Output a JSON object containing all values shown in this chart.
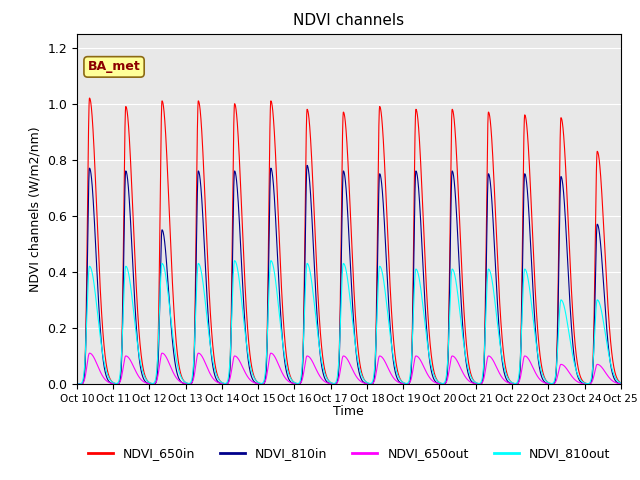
{
  "title": "NDVI channels",
  "ylabel": "NDVI channels (W/m2/nm)",
  "xlabel": "Time",
  "ylim": [
    0,
    1.25
  ],
  "annotation_text": "BA_met",
  "bg_color": "#ffffff",
  "plot_bg_color": "#e8e8e8",
  "colors": {
    "NDVI_650in": "#ff0000",
    "NDVI_810in": "#00008b",
    "NDVI_650out": "#ff00ff",
    "NDVI_810out": "#00ffff"
  },
  "x_tick_labels": [
    "Oct 10",
    "Oct 11",
    "Oct 12",
    "Oct 13",
    "Oct 14",
    "Oct 15",
    "Oct 16",
    "Oct 17",
    "Oct 18",
    "Oct 19",
    "Oct 20",
    "Oct 21",
    "Oct 22",
    "Oct 23",
    "Oct 24",
    "Oct 25"
  ],
  "num_cycles": 15,
  "peak_650in": [
    1.02,
    0.99,
    1.01,
    1.01,
    1.0,
    1.01,
    0.98,
    0.97,
    0.99,
    0.98,
    0.98,
    0.97,
    0.96,
    0.95,
    0.83
  ],
  "peak_810in": [
    0.77,
    0.76,
    0.55,
    0.76,
    0.76,
    0.77,
    0.78,
    0.76,
    0.75,
    0.76,
    0.76,
    0.75,
    0.75,
    0.74,
    0.57
  ],
  "peak_650out": [
    0.11,
    0.1,
    0.11,
    0.11,
    0.1,
    0.11,
    0.1,
    0.1,
    0.1,
    0.1,
    0.1,
    0.1,
    0.1,
    0.07,
    0.07
  ],
  "peak_810out": [
    0.42,
    0.42,
    0.43,
    0.43,
    0.44,
    0.44,
    0.43,
    0.43,
    0.42,
    0.41,
    0.41,
    0.41,
    0.41,
    0.3,
    0.3
  ]
}
